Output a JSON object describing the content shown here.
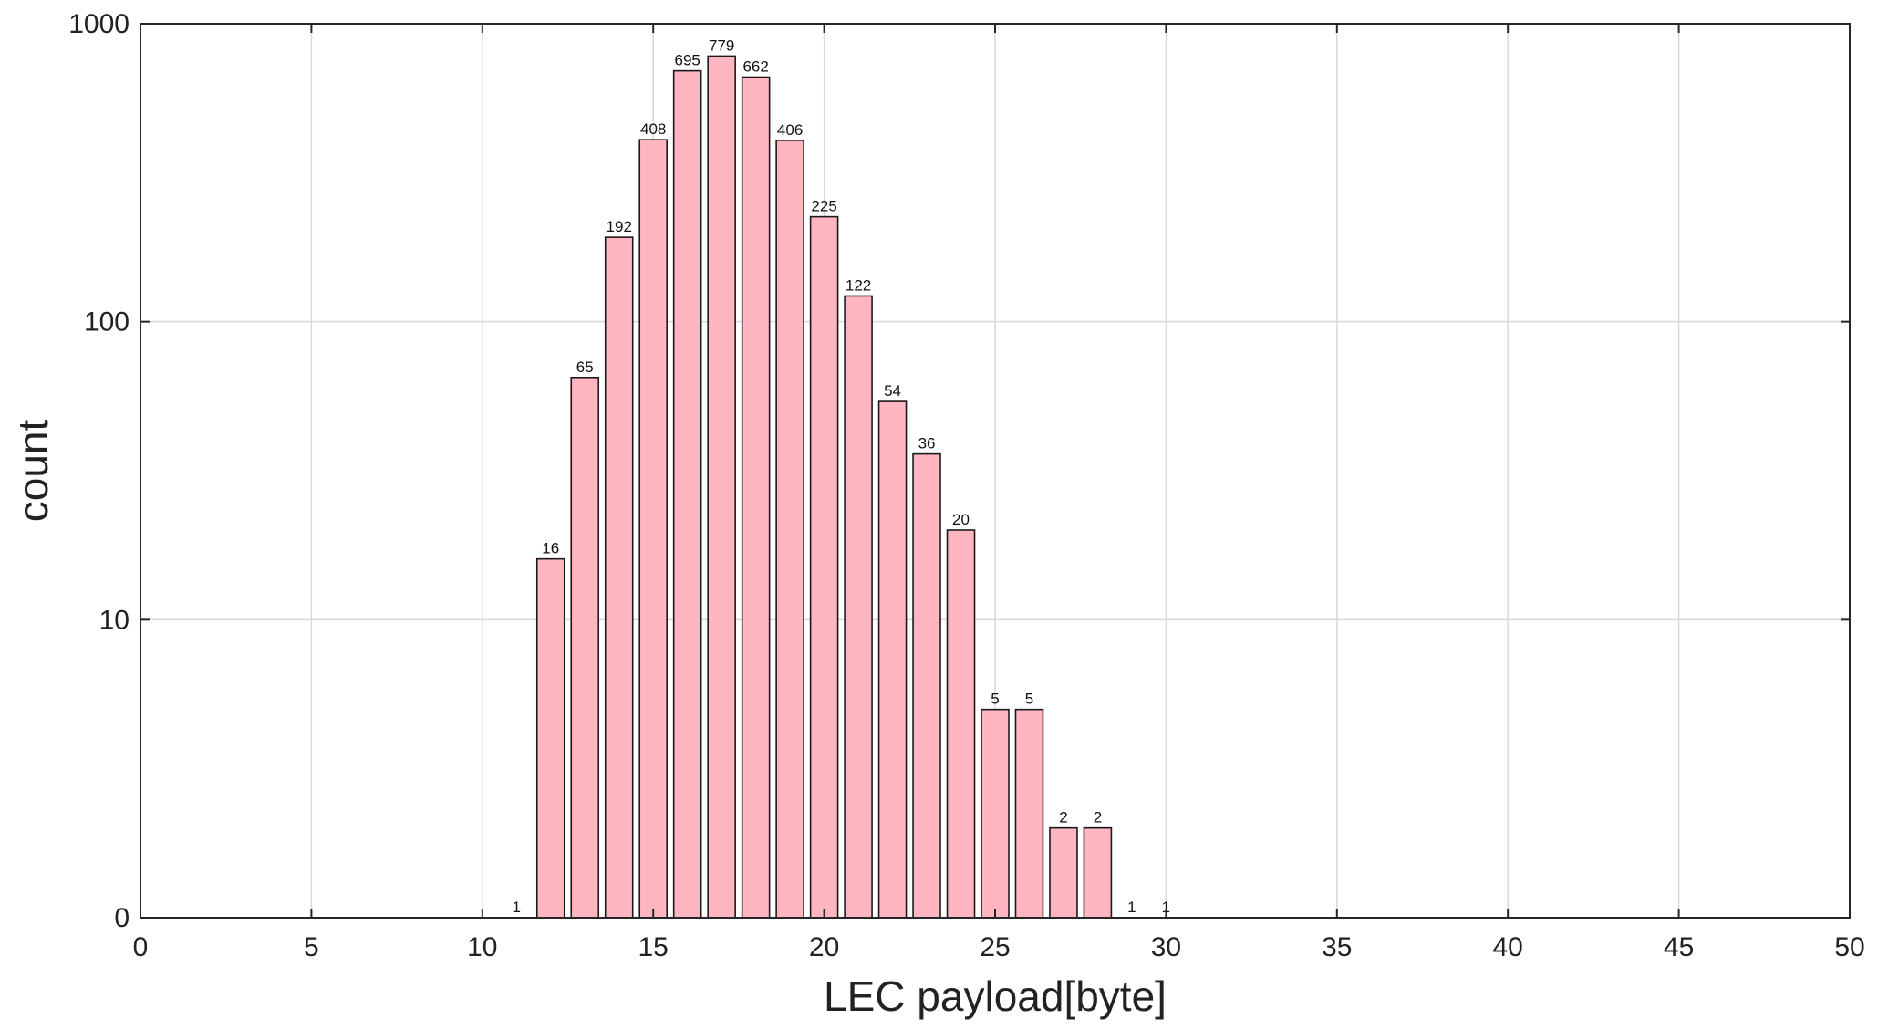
{
  "chart_data": {
    "type": "bar",
    "y_scale": "log",
    "x": [
      11,
      12,
      13,
      14,
      15,
      16,
      17,
      18,
      19,
      20,
      21,
      22,
      23,
      24,
      25,
      26,
      27,
      28,
      29,
      30
    ],
    "values": [
      1,
      16,
      65,
      192,
      408,
      695,
      779,
      662,
      406,
      225,
      122,
      54,
      36,
      20,
      5,
      5,
      2,
      2,
      1,
      1
    ],
    "data_labels": [
      "1",
      "16",
      "65",
      "192",
      "408",
      "695",
      "779",
      "662",
      "406",
      "225",
      "122",
      "54",
      "36",
      "20",
      "5",
      "5",
      "2",
      "2",
      "1",
      "1"
    ],
    "title": "",
    "xlabel": "LEC payload[byte]",
    "ylabel": "count",
    "xlim": [
      0,
      50
    ],
    "x_ticks": [
      "0",
      "5",
      "10",
      "15",
      "20",
      "25",
      "30",
      "35",
      "40",
      "45",
      "50"
    ],
    "y_ticks": [
      "0",
      "10",
      "100",
      "1000"
    ],
    "grid": true,
    "legend": "none",
    "colors": {
      "bar_fill": "#ffb6c1",
      "bar_edge": "#1a1a1a",
      "grid": "#d9d9d9"
    }
  }
}
